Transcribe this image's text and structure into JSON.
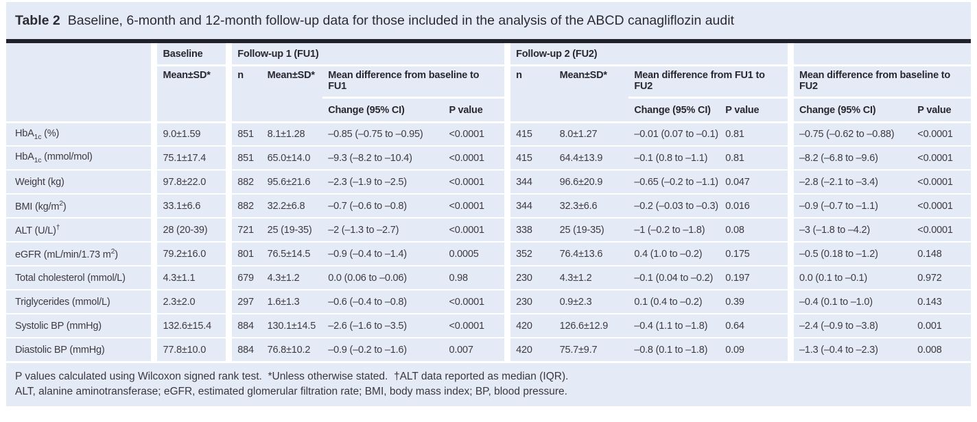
{
  "title": {
    "label": "Table 2",
    "text": "Baseline, 6-month and 12-month follow-up data for those included in the analysis of the ABCD canagliflozin audit"
  },
  "colors": {
    "panel_bg": "#e4eaf6",
    "title_rule": "#20212b",
    "body_text": "#3e3a41",
    "header_text": "#29282f",
    "separator": "#ffffff"
  },
  "header": {
    "baseline_group": "Baseline",
    "fu1_group": "Follow-up 1 (FU1)",
    "fu2_group": "Follow-up 2 (FU2)",
    "mean_sd": "Mean±SD*",
    "n": "n",
    "diff_baseline_fu1": "Mean difference from baseline to FU1",
    "diff_fu1_fu2": "Mean difference from FU1 to FU2",
    "diff_baseline_fu2": "Mean difference from baseline to FU2",
    "change": "Change (95% CI)",
    "p_value": "P value"
  },
  "table": {
    "rows": [
      {
        "label": [
          {
            "text": "HbA"
          },
          {
            "sub": "1c"
          },
          {
            "text": " (%)"
          }
        ],
        "cells": [
          "9.0±1.59",
          "851",
          "8.1±1.28",
          "–0.85 (–0.75 to –0.95)",
          "<0.0001",
          "415",
          "8.0±1.27",
          "–0.01 (0.07 to –0.1)",
          "0.81",
          "–0.75 (–0.62 to –0.88)",
          "<0.0001"
        ]
      },
      {
        "label": [
          {
            "text": "HbA"
          },
          {
            "sub": "1c"
          },
          {
            "text": " (mmol/mol)"
          }
        ],
        "cells": [
          "75.1±17.4",
          "851",
          "65.0±14.0",
          "–9.3 (–8.2 to –10.4)",
          "<0.0001",
          "415",
          "64.4±13.9",
          "–0.1 (0.8 to –1.1)",
          "0.81",
          "–8.2 (–6.8 to –9.6)",
          "<0.0001"
        ]
      },
      {
        "label": [
          {
            "text": "Weight (kg)"
          }
        ],
        "cells": [
          "97.8±22.0",
          "882",
          "95.6±21.6",
          "–2.3 (–1.9 to –2.5)",
          "<0.0001",
          "344",
          "96.6±20.9",
          "–0.65 (–0.2 to –1.1)",
          "0.047",
          "–2.8 (–2.1 to –3.4)",
          "<0.0001"
        ]
      },
      {
        "label": [
          {
            "text": "BMI (kg/m"
          },
          {
            "sup": "2"
          },
          {
            "text": ")"
          }
        ],
        "cells": [
          "33.1±6.6",
          "882",
          "32.2±6.8",
          "–0.7 (–0.6 to –0.8)",
          "<0.0001",
          "344",
          "32.3±6.6",
          "–0.2 (–0.03 to –0.3)",
          "0.016",
          "–0.9 (–0.7 to –1.1)",
          "<0.0001"
        ]
      },
      {
        "label": [
          {
            "text": "ALT (U/L)"
          },
          {
            "sup": "†"
          }
        ],
        "cells": [
          "28 (20-39)",
          "721",
          "25 (19-35)",
          "–2 (–1.3 to –2.7)",
          "<0.0001",
          "338",
          "25 (19-35)",
          "–1 (–0.2 to –1.8)",
          "0.08",
          "–3 (–1.8 to –4.2)",
          "<0.0001"
        ]
      },
      {
        "label": [
          {
            "text": "eGFR (mL/min/1.73 m"
          },
          {
            "sup": "2"
          },
          {
            "text": ")"
          }
        ],
        "cells": [
          "79.2±16.0",
          "801",
          "76.5±14.5",
          "–0.9 (–0.4 to –1.4)",
          "0.0005",
          "352",
          "76.4±13.6",
          "0.4 (1.0 to –0.2)",
          "0.175",
          "–0.5 (0.18 to –1.2)",
          "0.148"
        ]
      },
      {
        "label": [
          {
            "text": "Total cholesterol (mmol/L)"
          }
        ],
        "cells": [
          "4.3±1.1",
          "679",
          "4.3±1.2",
          "0.0 (0.06 to –0.06)",
          "0.98",
          "230",
          "4.3±1.2",
          "–0.1 (0.04 to –0.2)",
          "0.197",
          "0.0 (0.1 to –0.1)",
          "0.972"
        ]
      },
      {
        "label": [
          {
            "text": "Triglycerides (mmol/L)"
          }
        ],
        "cells": [
          "2.3±2.0",
          "297",
          "1.6±1.3",
          "–0.6 (–0.4 to –0.8)",
          "<0.0001",
          "230",
          "0.9±2.3",
          "0.1 (0.4 to –0.2)",
          "0.39",
          "–0.4 (0.1 to –1.0)",
          "0.143"
        ]
      },
      {
        "label": [
          {
            "text": "Systolic BP (mmHg)"
          }
        ],
        "cells": [
          "132.6±15.4",
          "884",
          "130.1±14.5",
          "–2.6 (–1.6 to –3.5)",
          "<0.0001",
          "420",
          "126.6±12.9",
          "–0.4 (1.1 to –1.8)",
          "0.64",
          "–2.4 (–0.9 to –3.8)",
          "0.001"
        ]
      },
      {
        "label": [
          {
            "text": "Diastolic BP (mmHg)"
          }
        ],
        "cells": [
          "77.8±10.0",
          "884",
          "76.8±10.2",
          "–0.9 (–0.2 to –1.6)",
          "0.007",
          "420",
          "75.7±9.7",
          "–0.8 (0.1 to –1.8)",
          "0.09",
          "–1.3 (–0.4 to –2.3)",
          "0.008"
        ]
      }
    ]
  },
  "footnotes": {
    "line1": "P values calculated using Wilcoxon signed rank test.  *Unless otherwise stated.  †ALT data reported as median (IQR).",
    "line2": "ALT, alanine aminotransferase; eGFR, estimated glomerular filtration rate; BMI, body mass index; BP, blood pressure."
  }
}
